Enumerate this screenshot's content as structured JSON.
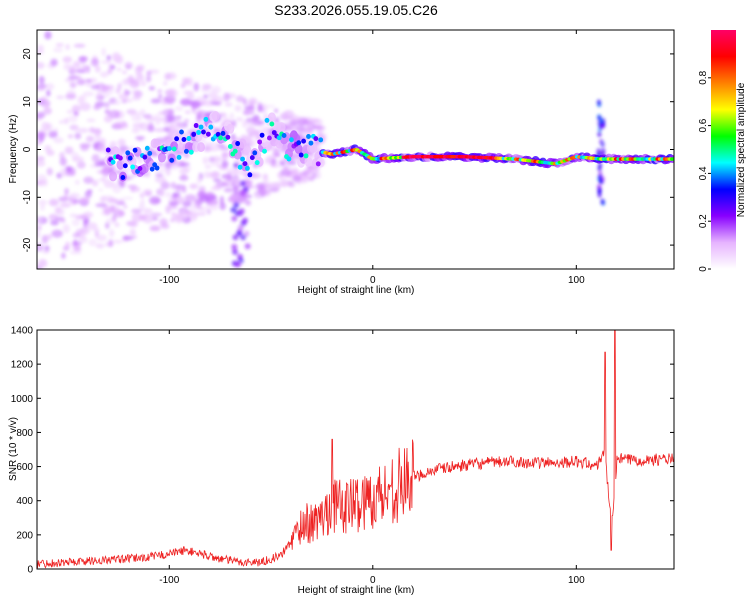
{
  "title": "S233.2026.055.19.05.C26",
  "chart_data": [
    {
      "type": "heatmap",
      "xlabel": "Height of straight line (km)",
      "ylabel": "Frequency (Hz)",
      "xlim": [
        -165,
        148
      ],
      "ylim": [
        -25,
        25
      ],
      "x_ticks": [
        -100,
        0,
        100
      ],
      "y_ticks": [
        -20,
        -10,
        0,
        10,
        20
      ],
      "colorbar": {
        "label": "Normalized spectral amplitude",
        "range": [
          0,
          1
        ],
        "ticks": [
          0.0,
          0.2,
          0.4,
          0.6,
          0.8
        ],
        "colormap": [
          "#ffffff",
          "#e6b3ff",
          "#8800ff",
          "#0000ff",
          "#00ffff",
          "#00ff00",
          "#ffff00",
          "#ff8000",
          "#ff0000",
          "#ff0066"
        ]
      },
      "ridge": [
        {
          "x": -120,
          "y": -3
        },
        {
          "x": -105,
          "y": -1
        },
        {
          "x": -95,
          "y": 1
        },
        {
          "x": -85,
          "y": 3
        },
        {
          "x": -75,
          "y": 5
        },
        {
          "x": -60,
          "y": -4
        },
        {
          "x": -50,
          "y": 5
        },
        {
          "x": -40,
          "y": 0
        },
        {
          "x": -30,
          "y": 0
        },
        {
          "x": -20,
          "y": -1
        },
        {
          "x": -8,
          "y": 0
        },
        {
          "x": 0,
          "y": -2
        },
        {
          "x": 20,
          "y": -1.5
        },
        {
          "x": 45,
          "y": -1.5
        },
        {
          "x": 70,
          "y": -2
        },
        {
          "x": 90,
          "y": -3
        },
        {
          "x": 100,
          "y": -1.5
        },
        {
          "x": 112,
          "y": -2
        },
        {
          "x": 130,
          "y": -2
        },
        {
          "x": 148,
          "y": -2
        }
      ]
    },
    {
      "type": "line",
      "xlabel": "Height of straight line (km)",
      "ylabel": "SNR (10 * v/v)",
      "xlim": [
        -165,
        148
      ],
      "ylim": [
        0,
        1400
      ],
      "x_ticks": [
        -100,
        0,
        100
      ],
      "y_ticks": [
        0,
        200,
        400,
        600,
        800,
        1000,
        1200,
        1400
      ],
      "color": "#ee2222",
      "x": [
        -165,
        -150,
        -135,
        -120,
        -110,
        -100,
        -92,
        -85,
        -75,
        -65,
        -55,
        -45,
        -38,
        -34,
        -30,
        -25,
        -20,
        -15,
        -10,
        -5,
        0,
        5,
        10,
        15,
        20,
        25,
        30,
        40,
        50,
        60,
        70,
        80,
        90,
        100,
        105,
        110,
        114,
        116,
        118,
        120,
        125,
        135,
        148
      ],
      "y": [
        30,
        40,
        50,
        60,
        70,
        90,
        110,
        90,
        60,
        40,
        40,
        80,
        200,
        280,
        260,
        300,
        380,
        360,
        380,
        390,
        420,
        440,
        480,
        500,
        540,
        560,
        580,
        600,
        615,
        625,
        630,
        620,
        625,
        630,
        620,
        600,
        700,
        400,
        300,
        650,
        640,
        640,
        645
      ]
    }
  ]
}
